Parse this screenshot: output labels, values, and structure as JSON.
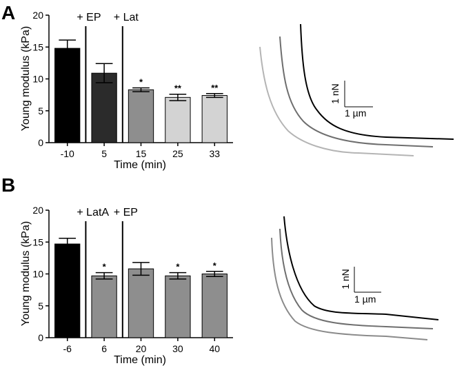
{
  "chart_data": [
    {
      "panel_letter": "A",
      "type": "bar",
      "xlabel": "Time (min)",
      "ylabel": "Young modulus (kPa)",
      "ylim": [
        0,
        20
      ],
      "yticks": [
        "0",
        "5",
        "10",
        "15",
        "20"
      ],
      "categories": [
        "-10",
        "5",
        "15",
        "25",
        "33"
      ],
      "values": [
        14.8,
        10.9,
        8.3,
        7.1,
        7.4
      ],
      "errors": [
        1.3,
        1.5,
        0.3,
        0.5,
        0.3
      ],
      "colors": [
        "#000000",
        "#2b2b2b",
        "#8e8e8e",
        "#d3d3d3",
        "#d3d3d3"
      ],
      "significance": [
        "",
        "",
        "*",
        "**",
        "**"
      ],
      "markers": [
        {
          "label": "+ EP",
          "after_index": 0
        },
        {
          "label": "+ Lat",
          "after_index": 1
        }
      ]
    },
    {
      "panel_letter": "B",
      "type": "bar",
      "xlabel": "Time (min)",
      "ylabel": "Young modulus (kPa)",
      "ylim": [
        0,
        20
      ],
      "yticks": [
        "0",
        "5",
        "10",
        "15",
        "20"
      ],
      "categories": [
        "-6",
        "6",
        "20",
        "30",
        "40"
      ],
      "values": [
        14.7,
        9.7,
        10.8,
        9.7,
        10.0
      ],
      "errors": [
        0.9,
        0.5,
        1.0,
        0.5,
        0.4
      ],
      "colors": [
        "#000000",
        "#8e8e8e",
        "#8e8e8e",
        "#8e8e8e",
        "#8e8e8e"
      ],
      "significance": [
        "",
        "*",
        "",
        "*",
        "*"
      ],
      "markers": [
        {
          "label": "+ LatA",
          "after_index": 0
        },
        {
          "label": "+ EP",
          "after_index": 1
        }
      ]
    }
  ],
  "scale_bars": [
    {
      "force_label": "1 nN",
      "length_label": "1 µm"
    },
    {
      "force_label": "1 nN",
      "length_label": "1 µm"
    }
  ],
  "force_curves": [
    {
      "colors": [
        "#000000",
        "#6e6e6e",
        "#b4b4b4"
      ]
    },
    {
      "colors": [
        "#000000",
        "#6e6e6e",
        "#8a8a8a"
      ]
    }
  ]
}
